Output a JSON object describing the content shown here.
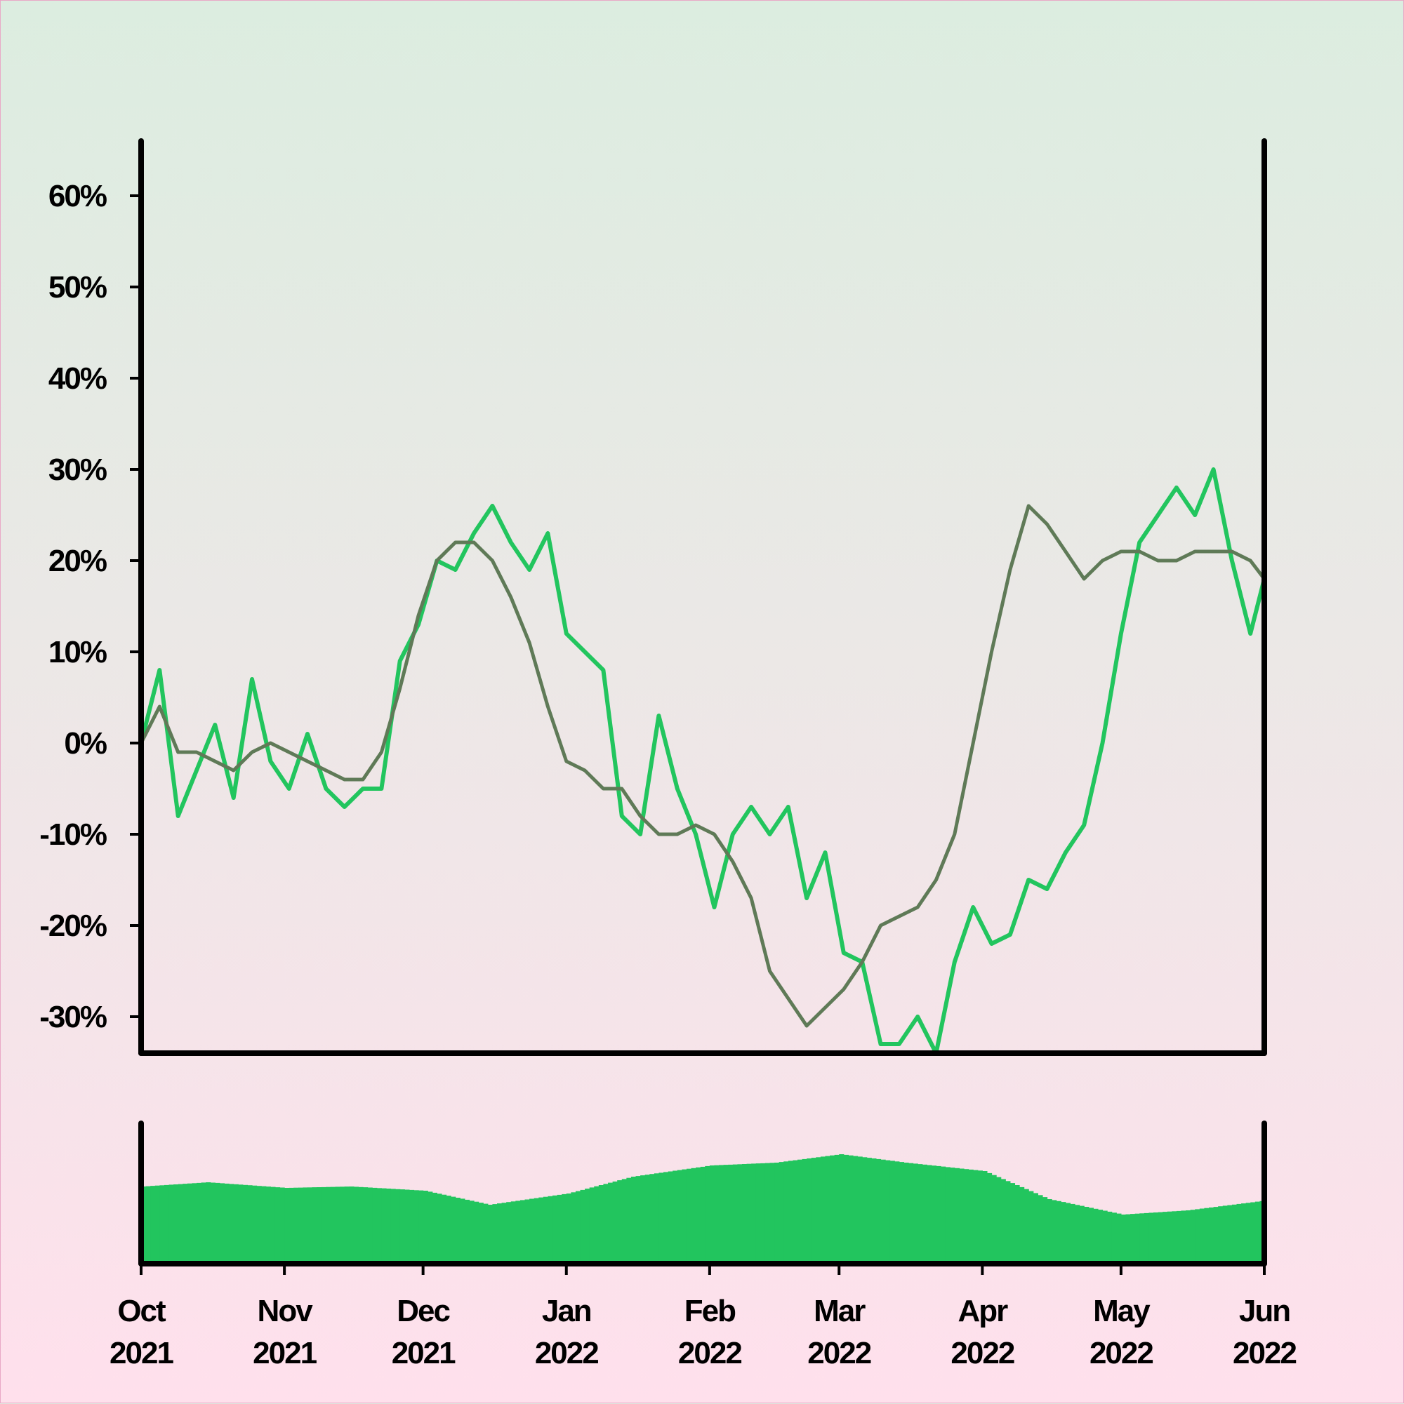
{
  "chart_data": [
    {
      "type": "line",
      "title": "",
      "xlabel": "",
      "ylabel": "",
      "ylim": [
        -34,
        66
      ],
      "y_ticks": [
        {
          "value": 60,
          "label": "60%"
        },
        {
          "value": 50,
          "label": "50%"
        },
        {
          "value": 40,
          "label": "40%"
        },
        {
          "value": 30,
          "label": "30%"
        },
        {
          "value": 20,
          "label": "20%"
        },
        {
          "value": 10,
          "label": "10%"
        },
        {
          "value": 0,
          "label": "0%"
        },
        {
          "value": -10,
          "label": "-10%"
        },
        {
          "value": -20,
          "label": "-20%"
        },
        {
          "value": -30,
          "label": "-30%"
        }
      ],
      "xlim": [
        "2021-10-01",
        "2022-06-01"
      ],
      "grid": false,
      "series": [
        {
          "color": "#22c55e",
          "x": [
            "2021-10-01",
            "2021-10-05",
            "2021-10-09",
            "2021-10-13",
            "2021-10-17",
            "2021-10-21",
            "2021-10-25",
            "2021-10-29",
            "2021-11-02",
            "2021-11-06",
            "2021-11-10",
            "2021-11-14",
            "2021-11-18",
            "2021-11-22",
            "2021-11-26",
            "2021-11-30",
            "2021-12-04",
            "2021-12-08",
            "2021-12-12",
            "2021-12-16",
            "2021-12-20",
            "2021-12-24",
            "2021-12-28",
            "2022-01-01",
            "2022-01-05",
            "2022-01-09",
            "2022-01-13",
            "2022-01-17",
            "2022-01-21",
            "2022-01-25",
            "2022-01-29",
            "2022-02-02",
            "2022-02-06",
            "2022-02-10",
            "2022-02-14",
            "2022-02-18",
            "2022-02-22",
            "2022-02-26",
            "2022-03-02",
            "2022-03-06",
            "2022-03-10",
            "2022-03-14",
            "2022-03-18",
            "2022-03-22",
            "2022-03-26",
            "2022-03-30",
            "2022-04-03",
            "2022-04-07",
            "2022-04-11",
            "2022-04-15",
            "2022-04-19",
            "2022-04-23",
            "2022-04-27",
            "2022-05-01",
            "2022-05-05",
            "2022-05-09",
            "2022-05-13",
            "2022-05-17",
            "2022-05-21",
            "2022-05-25",
            "2022-05-29",
            "2022-06-01"
          ],
          "values": [
            0,
            8,
            -8,
            -3,
            2,
            -6,
            7,
            -2,
            -5,
            1,
            -5,
            -7,
            -5,
            -5,
            9,
            13,
            20,
            19,
            23,
            26,
            22,
            19,
            23,
            12,
            10,
            8,
            -8,
            -10,
            3,
            -5,
            -10,
            -18,
            -10,
            -7,
            -10,
            -7,
            -17,
            -12,
            -23,
            -24,
            -33,
            -33,
            -30,
            -34,
            -24,
            -18,
            -22,
            -21,
            -15,
            -16,
            -12,
            -9,
            0,
            12,
            22,
            25,
            28,
            25,
            30,
            20,
            12,
            18
          ]
        },
        {
          "color": "#5f7a57",
          "x": [
            "2021-10-01",
            "2021-10-05",
            "2021-10-09",
            "2021-10-13",
            "2021-10-17",
            "2021-10-21",
            "2021-10-25",
            "2021-10-29",
            "2021-11-02",
            "2021-11-06",
            "2021-11-10",
            "2021-11-14",
            "2021-11-18",
            "2021-11-22",
            "2021-11-26",
            "2021-11-30",
            "2021-12-04",
            "2021-12-08",
            "2021-12-12",
            "2021-12-16",
            "2021-12-20",
            "2021-12-24",
            "2021-12-28",
            "2022-01-01",
            "2022-01-05",
            "2022-01-09",
            "2022-01-13",
            "2022-01-17",
            "2022-01-21",
            "2022-01-25",
            "2022-01-29",
            "2022-02-02",
            "2022-02-06",
            "2022-02-10",
            "2022-02-14",
            "2022-02-18",
            "2022-02-22",
            "2022-02-26",
            "2022-03-02",
            "2022-03-06",
            "2022-03-10",
            "2022-03-14",
            "2022-03-18",
            "2022-03-22",
            "2022-03-26",
            "2022-03-30",
            "2022-04-03",
            "2022-04-07",
            "2022-04-11",
            "2022-04-15",
            "2022-04-19",
            "2022-04-23",
            "2022-04-27",
            "2022-05-01",
            "2022-05-05",
            "2022-05-09",
            "2022-05-13",
            "2022-05-17",
            "2022-05-21",
            "2022-05-25",
            "2022-05-29",
            "2022-06-01"
          ],
          "values": [
            0,
            4,
            -1,
            -1,
            -2,
            -3,
            -1,
            0,
            -1,
            -2,
            -3,
            -4,
            -4,
            -1,
            6,
            14,
            20,
            22,
            22,
            20,
            16,
            11,
            4,
            -2,
            -3,
            -5,
            -5,
            -8,
            -10,
            -10,
            -9,
            -10,
            -13,
            -17,
            -25,
            -28,
            -31,
            -29,
            -27,
            -24,
            -20,
            -19,
            -18,
            -15,
            -10,
            0,
            10,
            19,
            26,
            24,
            21,
            18,
            20,
            21,
            21,
            20,
            20,
            21,
            21,
            21,
            20,
            18
          ]
        }
      ]
    },
    {
      "type": "bar",
      "title": "",
      "xlabel": "",
      "ylabel": "",
      "x_tick_labels": [
        {
          "date": "2021-10-01",
          "month": "Oct",
          "year": "2021"
        },
        {
          "date": "2021-11-01",
          "month": "Nov",
          "year": "2021"
        },
        {
          "date": "2021-12-01",
          "month": "Dec",
          "year": "2021"
        },
        {
          "date": "2022-01-01",
          "month": "Jan",
          "year": "2022"
        },
        {
          "date": "2022-02-01",
          "month": "Feb",
          "year": "2022"
        },
        {
          "date": "2022-03-01",
          "month": "Mar",
          "year": "2022"
        },
        {
          "date": "2022-04-01",
          "month": "Apr",
          "year": "2022"
        },
        {
          "date": "2022-05-01",
          "month": "May",
          "year": "2022"
        },
        {
          "date": "2022-06-01",
          "month": "Jun",
          "year": "2022"
        }
      ],
      "xlim": [
        "2021-10-01",
        "2022-06-01"
      ],
      "ylim": [
        0,
        100
      ],
      "series": [
        {
          "color": "#22c55e",
          "bar_days": 1,
          "x": [
            "2021-10-01",
            "2021-10-15",
            "2021-11-01",
            "2021-11-15",
            "2021-12-01",
            "2021-12-15",
            "2022-01-01",
            "2022-01-15",
            "2022-02-01",
            "2022-02-15",
            "2022-03-01",
            "2022-03-15",
            "2022-04-01",
            "2022-04-15",
            "2022-05-01",
            "2022-05-15",
            "2022-06-01"
          ],
          "values": [
            55,
            58,
            54,
            55,
            52,
            42,
            50,
            62,
            70,
            72,
            78,
            72,
            66,
            46,
            35,
            38,
            45
          ]
        }
      ]
    }
  ]
}
